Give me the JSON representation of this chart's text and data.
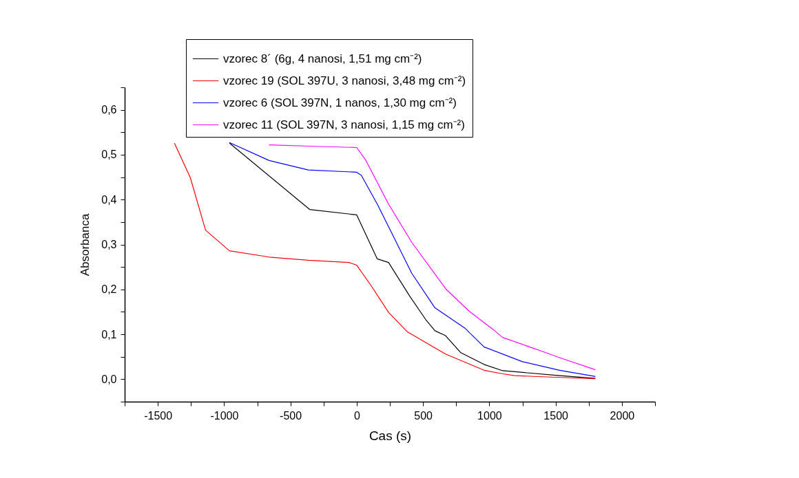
{
  "chart_data": {
    "type": "line",
    "xlabel": "Cas (s)",
    "ylabel": "Absorbanca",
    "xlim": [
      -1750,
      2250
    ],
    "ylim": [
      -0.05,
      0.65
    ],
    "xticks": [
      {
        "value": -1750,
        "label": null
      },
      -1500,
      {
        "value": -1250,
        "label": null
      },
      -1000,
      {
        "value": -750,
        "label": null
      },
      -500,
      {
        "value": -250,
        "label": null
      },
      0,
      {
        "value": 250,
        "label": null
      },
      500,
      {
        "value": 750,
        "label": null
      },
      1000,
      {
        "value": 1250,
        "label": null
      },
      1500,
      {
        "value": 1750,
        "label": null
      },
      2000,
      {
        "value": 2250,
        "label": null
      }
    ],
    "yticks": [
      {
        "value": -0.05,
        "label": null
      },
      {
        "value": 0,
        "label": "0,0"
      },
      {
        "value": 0.05,
        "label": null
      },
      {
        "value": 0.1,
        "label": "0,1"
      },
      {
        "value": 0.15,
        "label": null
      },
      {
        "value": 0.2,
        "label": "0,2"
      },
      {
        "value": 0.25,
        "label": null
      },
      {
        "value": 0.3,
        "label": "0,3"
      },
      {
        "value": 0.35,
        "label": null
      },
      {
        "value": 0.4,
        "label": "0,4"
      },
      {
        "value": 0.45,
        "label": null
      },
      {
        "value": 0.5,
        "label": "0,5"
      },
      {
        "value": 0.55,
        "label": null
      },
      {
        "value": 0.6,
        "label": "0,6"
      },
      {
        "value": 0.65,
        "label": null
      }
    ],
    "legend": "top",
    "series": [
      {
        "name": "vzorec 8´ (6g, 4 nanosi, 1,51 mg cm⁻²)",
        "color": "#000000",
        "x": [
          -960,
          -355,
          0,
          155,
          240,
          400,
          520,
          590,
          670,
          785,
          960,
          1100,
          1530,
          1800
        ],
        "values": [
          0.526,
          0.378,
          0.366,
          0.268,
          0.26,
          0.185,
          0.133,
          0.108,
          0.097,
          0.059,
          0.033,
          0.019,
          0.008,
          0.002
        ]
      },
      {
        "name": "vzorec 19 (SOL 397U, 3 nanosi, 3,48 mg cm⁻²)",
        "color": "#ff0000",
        "x": [
          -1375,
          -1255,
          -1140,
          -960,
          -660,
          -365,
          -60,
          0,
          105,
          240,
          380,
          670,
          960,
          1100,
          1190,
          1530,
          1800
        ],
        "values": [
          0.526,
          0.449,
          0.332,
          0.286,
          0.272,
          0.265,
          0.26,
          0.254,
          0.21,
          0.149,
          0.106,
          0.056,
          0.02,
          0.012,
          0.008,
          0.004,
          0.001
        ]
      },
      {
        "name": "vzorec 6 (SOL 397N, 1 nanos, 1,30 mg cm⁻²)",
        "color": "#0000ff",
        "x": [
          -960,
          -660,
          -365,
          0,
          35,
          155,
          260,
          415,
          590,
          815,
          960,
          1250,
          1530,
          1800
        ],
        "values": [
          0.527,
          0.487,
          0.466,
          0.461,
          0.454,
          0.39,
          0.328,
          0.236,
          0.159,
          0.114,
          0.072,
          0.039,
          0.02,
          0.006
        ]
      },
      {
        "name": "vzorec 11 (SOL 397N, 3 nanosi, 1,15 mg cm⁻²)",
        "color": "#ff00ff",
        "x": [
          -660,
          -365,
          0,
          70,
          240,
          415,
          675,
          850,
          1040,
          1100,
          1390,
          1530,
          1800
        ],
        "values": [
          0.522,
          0.519,
          0.516,
          0.487,
          0.39,
          0.305,
          0.2,
          0.151,
          0.108,
          0.093,
          0.063,
          0.048,
          0.021
        ]
      }
    ]
  }
}
